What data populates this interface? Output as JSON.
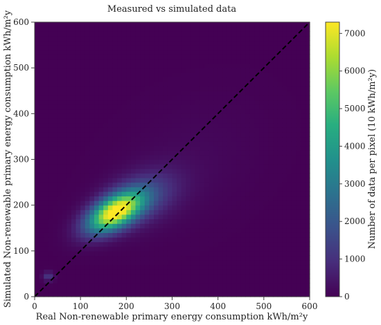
{
  "chart_data": {
    "type": "heatmap",
    "title": "Measured vs simulated data",
    "xlabel": "Real Non-renewable primary energy consumption kWh/m²y",
    "ylabel": "Simulated Non-renewable primary energy consumption kWh/m²y",
    "xlim": [
      0,
      600
    ],
    "ylim": [
      0,
      600
    ],
    "xticks": [
      "0",
      "100",
      "200",
      "300",
      "400",
      "500",
      "600"
    ],
    "yticks": [
      "0",
      "100",
      "200",
      "300",
      "400",
      "500",
      "600"
    ],
    "bin_width": 10,
    "colorbar": {
      "label": "Number of data per pixel (10 kWh/m²y)",
      "range": [
        0,
        7300
      ],
      "ticks": [
        "0",
        "1000",
        "2000",
        "3000",
        "4000",
        "5000",
        "6000",
        "7000"
      ],
      "colormap": [
        "#440154",
        "#472d7b",
        "#3b528b",
        "#2c728e",
        "#21918c",
        "#28ae80",
        "#5ec962",
        "#addc30",
        "#fde725"
      ]
    },
    "reference_line": {
      "style": "dashed",
      "color": "#000000",
      "from": [
        0,
        0
      ],
      "to": [
        600,
        600
      ]
    },
    "density_clusters": [
      {
        "center": [
          175,
          185
        ],
        "peak": 7200,
        "spread_major": 45,
        "spread_minor": 22,
        "orientation_deg": 30
      },
      {
        "center": [
          230,
          215
        ],
        "peak": 1500,
        "spread_major": 60,
        "spread_minor": 35,
        "orientation_deg": 25
      },
      {
        "center": [
          330,
          290
        ],
        "peak": 150,
        "spread_major": 120,
        "spread_minor": 80,
        "orientation_deg": 35
      },
      {
        "center": [
          30,
          45
        ],
        "peak": 1200,
        "spread_major": 8,
        "spread_minor": 7,
        "orientation_deg": 0
      }
    ]
  }
}
